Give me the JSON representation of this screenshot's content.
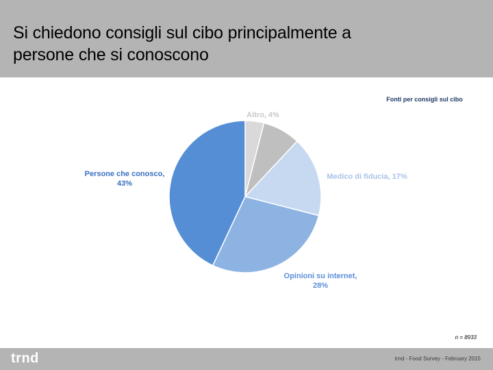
{
  "slide": {
    "title_line1": "Si chiedono consigli sul cibo principalmente a",
    "title_line2": "persone che si conoscono",
    "logo": "trnd",
    "footer_note": "trnd - Food Survey - February 2015",
    "sample_note": "n = 8933"
  },
  "chart_data": {
    "type": "pie",
    "title": "Fonti per consigli sul cibo",
    "start_angle_deg": 0,
    "direction": "clockwise",
    "slices": [
      {
        "name": "Altro",
        "value": 4,
        "color": "#d9d9d9",
        "label_lines": [
          "Altro, 4%"
        ],
        "label_color": "#c8c8c8"
      },
      {
        "name": "(unlabeled)",
        "value": 8,
        "color": "#bfbfbf",
        "label_lines": [],
        "label_color": "#bfbfbf"
      },
      {
        "name": "Medico di fiducia",
        "value": 17,
        "color": "#c6d9f1",
        "label_lines": [
          "Medico di fiducia, 17%"
        ],
        "label_color": "#a9c2e8"
      },
      {
        "name": "Opinioni su internet",
        "value": 28,
        "color": "#8db3e2",
        "label_lines": [
          "Opinioni su internet,",
          "28%"
        ],
        "label_color": "#5a8ed8"
      },
      {
        "name": "Persone che conosco",
        "value": 43,
        "color": "#558ed5",
        "label_lines": [
          "Persone che conosco,",
          "43%"
        ],
        "label_color": "#3a6fc0"
      }
    ]
  }
}
